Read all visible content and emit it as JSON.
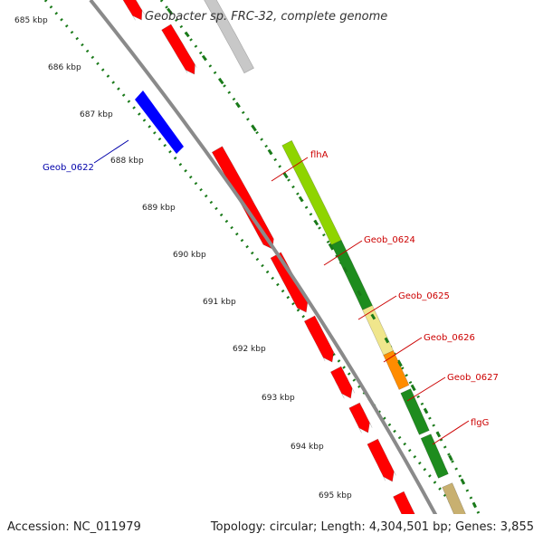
{
  "title": "Geobacter sp. FRC-32, complete genome",
  "footer": {
    "accession": "Accession: NC_011979",
    "summary": "Topology: circular; Length: 4,304,501 bp; Genes: 3,855"
  },
  "scale_labels": [
    "685 kbp",
    "686 kbp",
    "687 kbp",
    "688 kbp",
    "689 kbp",
    "690 kbp",
    "691 kbp",
    "692 kbp",
    "693 kbp",
    "694 kbp",
    "695 kbp"
  ],
  "gene_labels": {
    "geob_0622": "Geob_0622",
    "flha": "flhA",
    "geob_0624": "Geob_0624",
    "geob_0625": "Geob_0625",
    "geob_0626": "Geob_0626",
    "geob_0627": "Geob_0627",
    "flgg": "flgG"
  },
  "colors": {
    "backbone": "#8a8a8a",
    "tick": "#1a7a1a",
    "cds_red": "#ff0000",
    "cds_blue": "#0000ff",
    "cds_gray": "#c8c8c8",
    "lime": "#8fd400",
    "green": "#1e8c1e",
    "khaki": "#f0e68c",
    "orange": "#ff8c00",
    "tan": "#c8b070",
    "label_red": "#cc0000",
    "label_blue": "#0000aa"
  }
}
